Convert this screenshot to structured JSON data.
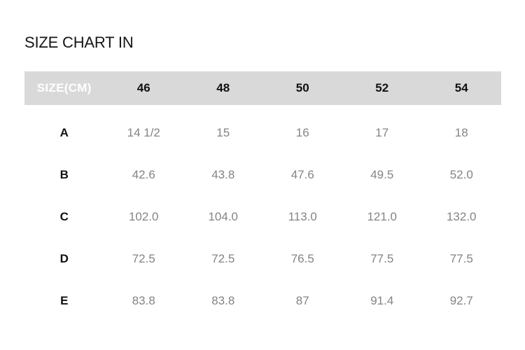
{
  "page": {
    "title": "SIZE CHART IN"
  },
  "size_table": {
    "header": {
      "unit_label": "SIZE(CM)",
      "sizes": [
        "46",
        "48",
        "50",
        "52",
        "54"
      ]
    },
    "rows": [
      {
        "label": "A",
        "values": [
          "14 1/2",
          "15",
          "16",
          "17",
          "18"
        ]
      },
      {
        "label": "B",
        "values": [
          "42.6",
          "43.8",
          "47.6",
          "49.5",
          "52.0"
        ]
      },
      {
        "label": "C",
        "values": [
          "102.0",
          "104.0",
          "113.0",
          "121.0",
          "132.0"
        ]
      },
      {
        "label": "D",
        "values": [
          "72.5",
          "72.5",
          "76.5",
          "77.5",
          "77.5"
        ]
      },
      {
        "label": "E",
        "values": [
          "83.8",
          "83.8",
          "87",
          "91.4",
          "92.7"
        ]
      }
    ],
    "colors": {
      "header_bg": "#d9d9d9",
      "header_unit_text": "#ffffff",
      "header_size_text": "#111111",
      "row_label_text": "#111111",
      "value_text": "#848484"
    }
  }
}
